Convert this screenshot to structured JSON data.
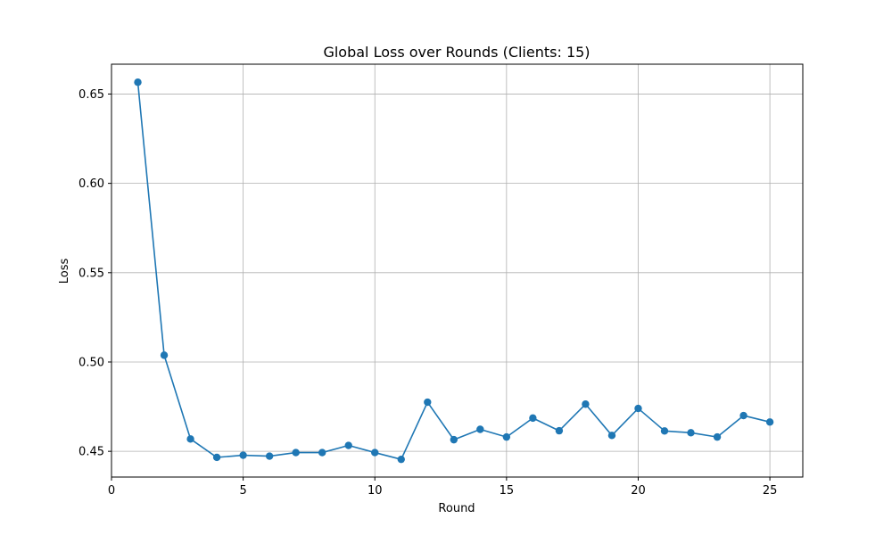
{
  "chart_data": {
    "type": "line",
    "title": "Global Loss over Rounds (Clients: 15)",
    "xlabel": "Round",
    "ylabel": "Loss",
    "xlim": [
      0,
      26.25
    ],
    "ylim": [
      0.4356,
      0.6667
    ],
    "xticks": [
      0,
      5,
      10,
      15,
      20,
      25
    ],
    "yticks": [
      0.45,
      0.5,
      0.55,
      0.6,
      0.65
    ],
    "grid": true,
    "marker": "circle",
    "color": "#1f77b4",
    "x": [
      1,
      2,
      3,
      4,
      5,
      6,
      7,
      8,
      9,
      10,
      11,
      12,
      13,
      14,
      15,
      16,
      17,
      18,
      19,
      20,
      21,
      22,
      23,
      24,
      25
    ],
    "series": [
      {
        "values": [
          0.6566,
          0.5038,
          0.4569,
          0.4466,
          0.4478,
          0.4473,
          0.4493,
          0.4493,
          0.4533,
          0.4493,
          0.4455,
          0.4775,
          0.4565,
          0.4623,
          0.458,
          0.4686,
          0.4615,
          0.4764,
          0.4589,
          0.474,
          0.4614,
          0.4604,
          0.458,
          0.47,
          0.4664
        ]
      }
    ]
  }
}
